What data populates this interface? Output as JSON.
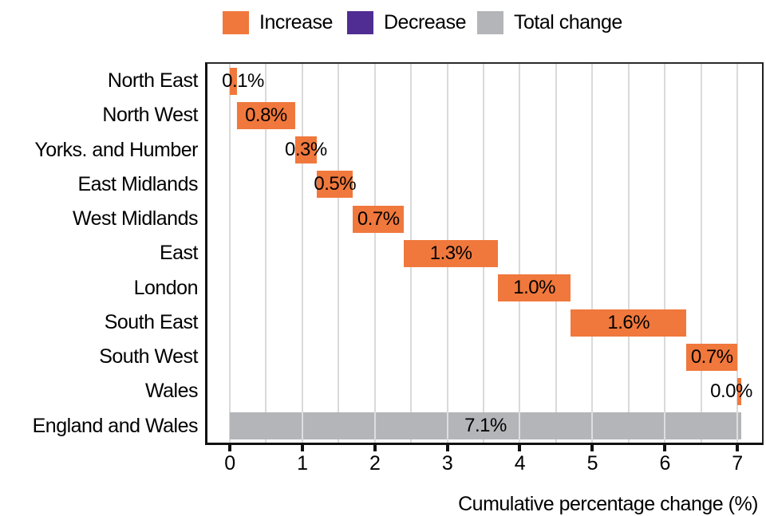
{
  "legend": {
    "items": [
      {
        "label": "Increase",
        "color": "#F0783C"
      },
      {
        "label": "Decrease",
        "color": "#4F2D92"
      },
      {
        "label": "Total change",
        "color": "#B3B5B8"
      }
    ]
  },
  "chart_data": {
    "type": "bar",
    "subtype": "horizontal-waterfall",
    "title": "",
    "xlabel": "Cumulative percentage change (%)",
    "ylabel": "",
    "xlim": [
      -0.34,
      7.36
    ],
    "x_ticks": [
      "0",
      "1",
      "2",
      "3",
      "4",
      "5",
      "6",
      "7"
    ],
    "grid": {
      "show": true,
      "interval": 0.5,
      "color": "#dadada"
    },
    "colors": {
      "increase": "#F0783C",
      "decrease": "#4F2D92",
      "total": "#B3B5B8"
    },
    "legend_position": "top",
    "bars": [
      {
        "category": "North East",
        "value_label": "0.1%",
        "value": 0.1,
        "start": 0,
        "end": 0.1,
        "kind": "increase",
        "label_dx": 12
      },
      {
        "category": "North West",
        "value_label": "0.8%",
        "value": 0.8,
        "start": 0.1,
        "end": 0.9,
        "kind": "increase"
      },
      {
        "category": "Yorks. and Humber",
        "value_label": "0.3%",
        "value": 0.3,
        "start": 0.9,
        "end": 1.2,
        "kind": "increase"
      },
      {
        "category": "East Midlands",
        "value_label": "0.5%",
        "value": 0.5,
        "start": 1.2,
        "end": 1.7,
        "kind": "increase"
      },
      {
        "category": "West Midlands",
        "value_label": "0.7%",
        "value": 0.7,
        "start": 1.7,
        "end": 2.4,
        "kind": "increase"
      },
      {
        "category": "East",
        "value_label": "1.3%",
        "value": 1.3,
        "start": 2.4,
        "end": 3.7,
        "kind": "increase"
      },
      {
        "category": "London",
        "value_label": "1.0%",
        "value": 1.0,
        "start": 3.7,
        "end": 4.7,
        "kind": "increase"
      },
      {
        "category": "South East",
        "value_label": "1.6%",
        "value": 1.6,
        "start": 4.7,
        "end": 6.3,
        "kind": "increase"
      },
      {
        "category": "South West",
        "value_label": "0.7%",
        "value": 0.7,
        "start": 6.3,
        "end": 7.0,
        "kind": "increase"
      },
      {
        "category": "Wales",
        "value_label": "0.0%",
        "value": 0.0,
        "start": 7.0,
        "end": 7.055,
        "kind": "increase",
        "label_dx": -10
      },
      {
        "category": "England and Wales",
        "value_label": "7.1%",
        "value": 7.1,
        "start": 0,
        "end": 7.055,
        "kind": "total"
      }
    ]
  }
}
